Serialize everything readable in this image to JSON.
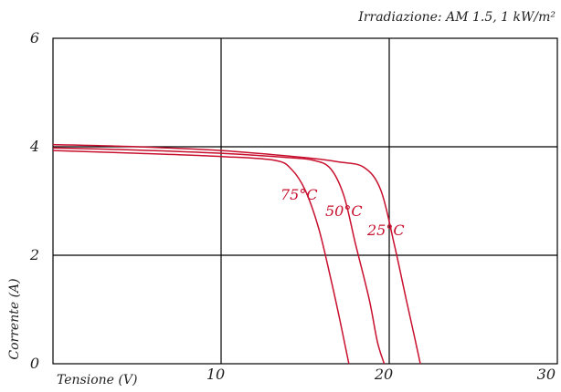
{
  "chart_data": {
    "type": "line",
    "annotation": "Irradiazione: AM 1.5, 1 kW/m²",
    "xlabel": "Tensione (V)",
    "ylabel": "Corrente (A)",
    "xlim": [
      0,
      30
    ],
    "ylim": [
      0,
      6
    ],
    "x_ticks": [
      "10",
      "20",
      "30"
    ],
    "y_ticks": [
      "0",
      "2",
      "4",
      "6"
    ],
    "grid": true,
    "series_color": "#c8102e",
    "series": [
      {
        "name": "25°C",
        "x": [
          0,
          5,
          10,
          15,
          17,
          18.5,
          19.5,
          20.3,
          21.0,
          21.5,
          21.85
        ],
        "y": [
          4.04,
          4.0,
          3.93,
          3.8,
          3.72,
          3.62,
          3.2,
          2.2,
          1.2,
          0.5,
          0.0
        ]
      },
      {
        "name": "50°C",
        "x": [
          0,
          5,
          10,
          14,
          15.5,
          16.5,
          17.3,
          18.0,
          18.8,
          19.3,
          19.7
        ],
        "y": [
          3.98,
          3.94,
          3.88,
          3.8,
          3.75,
          3.6,
          3.1,
          2.2,
          1.2,
          0.4,
          0.0
        ]
      },
      {
        "name": "75°C",
        "x": [
          0,
          5,
          10,
          13.2,
          14.2,
          15.0,
          15.8,
          16.5,
          17.0,
          17.4,
          17.6
        ],
        "y": [
          3.93,
          3.88,
          3.82,
          3.75,
          3.58,
          3.2,
          2.5,
          1.6,
          0.9,
          0.3,
          0.0
        ]
      }
    ]
  }
}
